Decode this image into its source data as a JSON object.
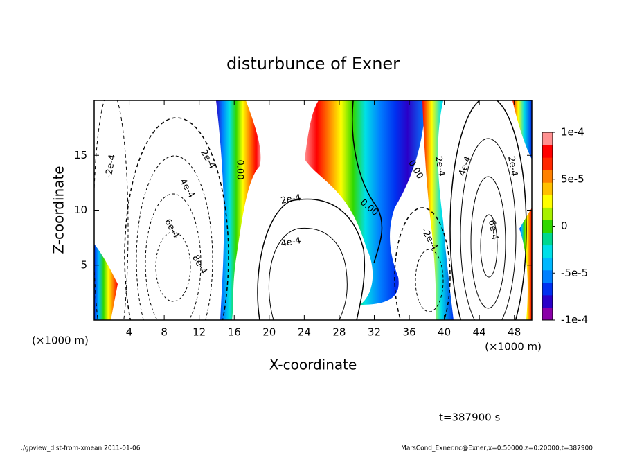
{
  "chart_data": {
    "type": "contour",
    "title": "disturbunce of Exner",
    "xlabel": "X-coordinate",
    "ylabel": "Z-coordinate",
    "xunit_left": "(×1000 m)",
    "xunit_right": "(×1000 m)",
    "xlim": [
      0,
      50
    ],
    "xticks": [
      4,
      8,
      12,
      16,
      20,
      24,
      28,
      32,
      36,
      40,
      44,
      48
    ],
    "ylim": [
      0,
      20
    ],
    "yticks": [
      5,
      10,
      15
    ],
    "colorbar_lim": [
      -0.0001,
      0.0001
    ],
    "colorbar_ticks": [
      {
        "value": 0.0001,
        "label": "1e-4"
      },
      {
        "value": 5e-05,
        "label": "5e-5"
      },
      0,
      {
        "value": -5e-05,
        "label": "-5e-5"
      },
      {
        "value": -0.0001,
        "label": "-1e-4"
      }
    ],
    "colorbar_colors": [
      "#8a00a8",
      "#2a00c8",
      "#0030f0",
      "#0080ff",
      "#00b8ff",
      "#00e0e8",
      "#00d890",
      "#30d800",
      "#a8f000",
      "#ffff00",
      "#ffc000",
      "#ff8000",
      "#ff2800",
      "#ff0000",
      "#ff9090"
    ],
    "contour_labels": [
      "-2e-4",
      "2e-4",
      "4e-4",
      "6e-4",
      "8e-4",
      "0.00",
      "2e-4",
      "4e-4",
      "0.00",
      "0.00",
      "-2e-4",
      "2e-4",
      "4e-4",
      "2e-4",
      "6e-4"
    ],
    "time_label": "t=387900 s",
    "footer_left": "./gpview_dist-from-xmean  2011-01-06",
    "footer_right": "MarsCond_Exner.nc@Exner,x=0:50000,z=0:20000,t=387900"
  }
}
